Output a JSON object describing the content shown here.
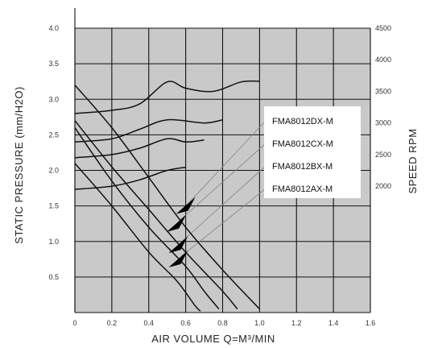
{
  "chart_data": {
    "type": "line",
    "xlabel": "AIR VOLUME  Q=M³/MIN",
    "ylabel_left": "STATIC PRESSURE  (mm/H2O)",
    "ylabel_right": "SPEED  RPM",
    "xlim": [
      0,
      1.6
    ],
    "ylim_left": [
      0,
      4.0
    ],
    "ylim_right": [
      0,
      4500
    ],
    "x_ticks": [
      "0",
      "0.2",
      "0.4",
      "0.6",
      "0.8",
      "1.0",
      "1.2",
      "1.4",
      "1.6"
    ],
    "y_left_ticks": [
      "0.5",
      "1.0",
      "1.5",
      "2.0",
      "2.5",
      "3.0",
      "3.5",
      "4.0"
    ],
    "y_right_ticks": [
      "2000",
      "2500",
      "3000",
      "3500",
      "4000",
      "4500"
    ],
    "legend": [
      "FMA8012DX-M",
      "FMA8012CX-M",
      "FMA8012BX-M",
      "FMA8012AX-M"
    ],
    "grid": true,
    "series": [
      {
        "name": "FMA8012DX-M",
        "pressure": [
          [
            0,
            3.2
          ],
          [
            0.2,
            2.6
          ],
          [
            0.4,
            1.9
          ],
          [
            0.6,
            1.2
          ],
          [
            0.8,
            0.6
          ],
          [
            1.0,
            0.05
          ]
        ],
        "speed": [
          [
            0,
            3150
          ],
          [
            0.2,
            3200
          ],
          [
            0.35,
            3300
          ],
          [
            0.5,
            3650
          ],
          [
            0.6,
            3550
          ],
          [
            0.75,
            3500
          ],
          [
            0.9,
            3650
          ],
          [
            1.0,
            3660
          ]
        ]
      },
      {
        "name": "FMA8012CX-M",
        "pressure": [
          [
            0,
            2.7
          ],
          [
            0.2,
            2.05
          ],
          [
            0.4,
            1.45
          ],
          [
            0.6,
            0.85
          ],
          [
            0.8,
            0.3
          ],
          [
            0.88,
            0.05
          ]
        ],
        "speed": [
          [
            0,
            2700
          ],
          [
            0.2,
            2750
          ],
          [
            0.35,
            2900
          ],
          [
            0.5,
            3050
          ],
          [
            0.7,
            3000
          ],
          [
            0.8,
            3050
          ]
        ]
      },
      {
        "name": "FMA8012BX-M",
        "pressure": [
          [
            0,
            2.6
          ],
          [
            0.2,
            1.85
          ],
          [
            0.4,
            1.2
          ],
          [
            0.6,
            0.65
          ],
          [
            0.7,
            0.3
          ],
          [
            0.78,
            0.05
          ]
        ],
        "speed": [
          [
            0,
            2450
          ],
          [
            0.2,
            2500
          ],
          [
            0.35,
            2600
          ],
          [
            0.5,
            2750
          ],
          [
            0.6,
            2700
          ],
          [
            0.7,
            2730
          ]
        ]
      },
      {
        "name": "FMA8012AX-M",
        "pressure": [
          [
            0,
            2.1
          ],
          [
            0.2,
            1.5
          ],
          [
            0.4,
            0.85
          ],
          [
            0.55,
            0.45
          ],
          [
            0.65,
            0.1
          ],
          [
            0.68,
            0.02
          ]
        ],
        "speed": [
          [
            0,
            1950
          ],
          [
            0.2,
            2000
          ],
          [
            0.35,
            2100
          ],
          [
            0.5,
            2250
          ],
          [
            0.6,
            2300
          ]
        ]
      }
    ]
  }
}
